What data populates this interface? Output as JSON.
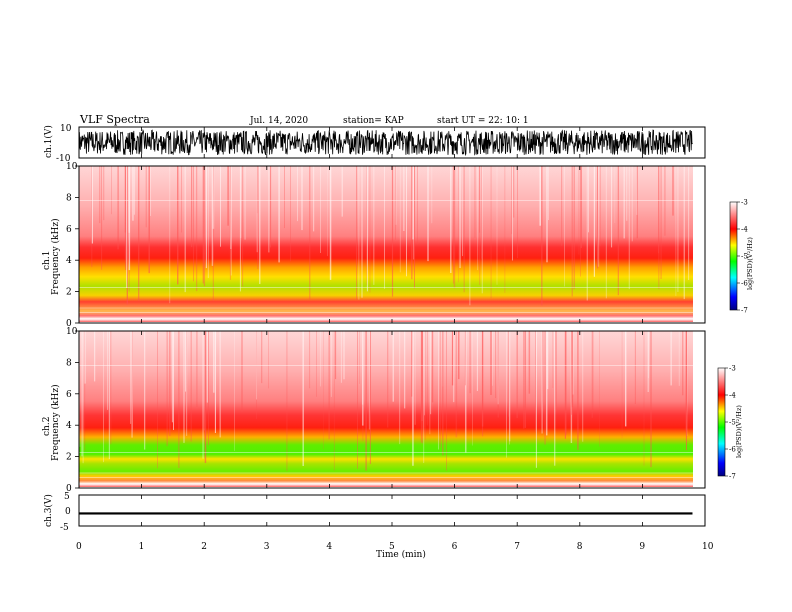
{
  "header": {
    "title": "VLF Spectra",
    "date": "Jul. 14, 2020",
    "station": "station= KAP",
    "start_ut": "start UT =  22: 10: 1"
  },
  "colors": {
    "spectrogram_scale": [
      "#00008b",
      "#0000ff",
      "#00ffff",
      "#00ff00",
      "#ffff00",
      "#ff0000",
      "#ffffff"
    ],
    "waveform": "#000000"
  },
  "chart_data": [
    {
      "type": "line",
      "panel": "ch1-waveform",
      "ylabel": "ch.1(V)",
      "ylim": [
        -10,
        10
      ],
      "yticks": [
        "10",
        "-10"
      ],
      "xlim": [
        0,
        10
      ],
      "series": [
        {
          "description_values": "dense noise-like waveform, amplitude roughly -8 to 8 V over 0–9.8 min"
        }
      ]
    },
    {
      "type": "heatmap",
      "panel": "ch1-spectrogram",
      "ylabel": "ch.1\nFrequency (kHz)",
      "ylim": [
        0,
        10
      ],
      "yticks": [
        "0",
        "2",
        "4",
        "6",
        "8",
        "10"
      ],
      "xlim": [
        0,
        10
      ],
      "colorbar": {
        "label": "log(PSD)(V²/Hz)",
        "range": [
          -7,
          -3
        ],
        "ticks": [
          "-3",
          "-4",
          "-5",
          "-6",
          "-7"
        ]
      },
      "bands": [
        {
          "f_low": 4.8,
          "f_high": 10,
          "log_psd": -3.3
        },
        {
          "f_low": 3.6,
          "f_high": 4.8,
          "log_psd": -3.9
        },
        {
          "f_low": 1.0,
          "f_high": 3.6,
          "log_psd": -4.7
        },
        {
          "f_low": 0,
          "f_high": 1.0,
          "log_psd": -4.0
        }
      ]
    },
    {
      "type": "heatmap",
      "panel": "ch2-spectrogram",
      "ylabel": "ch.2\nFrequency (kHz)",
      "ylim": [
        0,
        10
      ],
      "yticks": [
        "0",
        "2",
        "4",
        "6",
        "8",
        "10"
      ],
      "xlim": [
        0,
        10
      ],
      "colorbar": {
        "label": "log(PSD)(V²/Hz)",
        "range": [
          -7,
          -3
        ],
        "ticks": [
          "-3",
          "-4",
          "-5",
          "-6",
          "-7"
        ]
      },
      "bands": [
        {
          "f_low": 4.5,
          "f_high": 10,
          "log_psd": -3.3
        },
        {
          "f_low": 3.2,
          "f_high": 4.5,
          "log_psd": -3.9
        },
        {
          "f_low": 0.8,
          "f_high": 3.2,
          "log_psd": -5.0
        },
        {
          "f_low": 0,
          "f_high": 0.8,
          "log_psd": -4.2
        }
      ]
    },
    {
      "type": "line",
      "panel": "ch3-waveform",
      "ylabel": "ch.3(V)",
      "ylim": [
        -5,
        5
      ],
      "yticks": [
        "5",
        "0",
        "-5"
      ],
      "xlim": [
        0,
        10
      ],
      "series": [
        {
          "description_values": "narrow band around -1 V (about -1.3 to -0.6 V) over 0–9.8 min"
        }
      ]
    }
  ],
  "xaxis": {
    "label": "Time (min)",
    "ticks": [
      "0",
      "1",
      "2",
      "3",
      "4",
      "5",
      "6",
      "7",
      "8",
      "9",
      "10"
    ]
  }
}
